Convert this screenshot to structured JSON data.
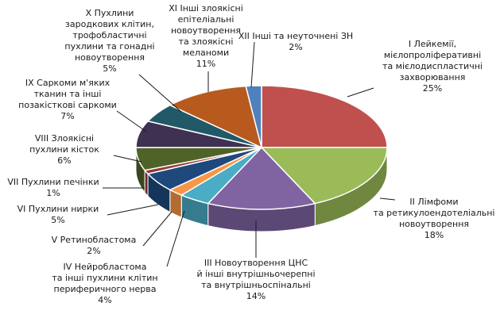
{
  "chart_data": {
    "type": "pie",
    "style": "3d",
    "title": "",
    "legend": "none",
    "categories": [
      "I Лейкемії, мієлопроліферативні та мієлодиспластичні захворювання",
      "II Лімфоми та ретикулоендотеліальні новоутворення",
      "III Новоутворення ЦНС й інші внутрішньочерепні та внутрішньоспінальні",
      "IV Нейробластома та інші пухлини клітин периферичного нерва",
      "V Ретинобластома",
      "VI Пухлини нирки",
      "VII Пухлини печінки",
      "VIII Злоякісні пухлини кісток",
      "IX Саркоми м'яких тканин та інші позакісткові саркоми",
      "X Пухлини зародкових клітин, трофобластичні пухлини та гонадні новоутворення",
      "XI Інші злоякісні епітеліальні новоутворення та злоякісні меланоми",
      "XII Інші та неуточнені ЗН"
    ],
    "values": [
      25,
      18,
      14,
      4,
      2,
      5,
      1,
      6,
      7,
      5,
      11,
      2
    ],
    "colors": [
      "#c0504d",
      "#9bbb59",
      "#8064a2",
      "#4bacc6",
      "#f79646",
      "#1f497d",
      "#953735",
      "#4f6228",
      "#3f3151",
      "#215968",
      "#b85a1e",
      "#4f81bd"
    ],
    "labels": [
      {
        "lines": [
          "I Лейкемії,",
          "мієлопроліферативні",
          "та мієлодиспластичні",
          "захворювання"
        ],
        "value": "25%"
      },
      {
        "lines": [
          "II Лімфоми",
          "та ретикулоендотеліальні",
          "новоутворення"
        ],
        "value": "18%"
      },
      {
        "lines": [
          "III Новоутворення ЦНС",
          "й інші внутрішньочерепні",
          "та внутрішньоспінальні"
        ],
        "value": "14%"
      },
      {
        "lines": [
          "IV Нейробластома",
          "та інші пухлини клітин",
          "периферичного нерва"
        ],
        "value": "4%"
      },
      {
        "lines": [
          "V Ретинобластома"
        ],
        "value": "2%"
      },
      {
        "lines": [
          "VI Пухлини нирки"
        ],
        "value": "5%"
      },
      {
        "lines": [
          "VII Пухлини печінки"
        ],
        "value": "1%"
      },
      {
        "lines": [
          "VIII Злоякісні",
          "пухлини кісток"
        ],
        "value": "6%"
      },
      {
        "lines": [
          "IX Саркоми м'яких",
          "тканин та інші",
          "позакісткові саркоми"
        ],
        "value": "7%"
      },
      {
        "lines": [
          "X Пухлини",
          "зародкових клітин,",
          "трофобластичні",
          "пухлини та гонадні",
          "новоутворення"
        ],
        "value": "5%"
      },
      {
        "lines": [
          "XI Інші злоякісні",
          "епітеліальні",
          "новоутворення",
          "та злоякісні",
          "меланоми"
        ],
        "value": "11%"
      },
      {
        "lines": [
          "XII Інші та неуточнені ЗН"
        ],
        "value": "2%"
      }
    ]
  }
}
